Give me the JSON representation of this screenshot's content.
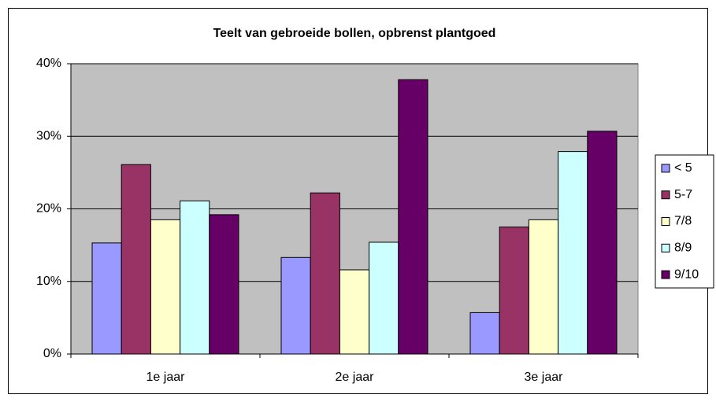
{
  "chart_data": {
    "type": "bar",
    "title": "Teelt van gebroeide bollen, opbrenst plantgoed",
    "categories": [
      "1e jaar",
      "2e jaar",
      "3e jaar"
    ],
    "series": [
      {
        "name": "< 5",
        "color": "#9999ff",
        "values": [
          15.3,
          13.3,
          5.7
        ]
      },
      {
        "name": "5-7",
        "color": "#993366",
        "values": [
          26.1,
          22.2,
          17.5
        ]
      },
      {
        "name": "7/8",
        "color": "#ffffcc",
        "values": [
          18.5,
          11.6,
          18.5
        ]
      },
      {
        "name": "8/9",
        "color": "#ccffff",
        "values": [
          21.1,
          15.4,
          27.9
        ]
      },
      {
        "name": "9/10",
        "color": "#660066",
        "values": [
          19.2,
          37.8,
          30.7
        ]
      }
    ],
    "ylim": [
      0,
      40
    ],
    "yticks": [
      {
        "value": 0,
        "label": "0%"
      },
      {
        "value": 10,
        "label": "10%"
      },
      {
        "value": 20,
        "label": "20%"
      },
      {
        "value": 30,
        "label": "30%"
      },
      {
        "value": 40,
        "label": "40%"
      }
    ],
    "grid": true,
    "legend": "right",
    "plot_background": "#c0c0c0"
  }
}
